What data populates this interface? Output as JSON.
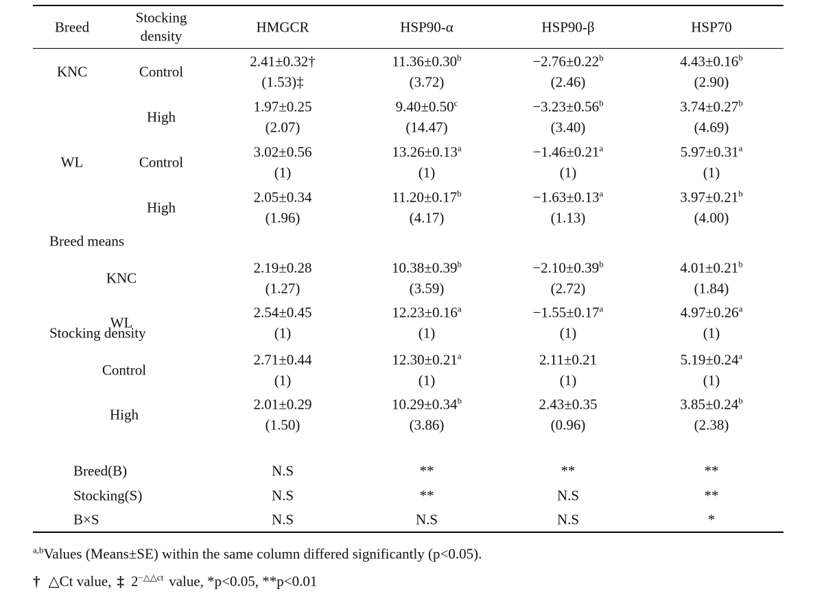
{
  "table": {
    "header": [
      "Breed",
      "Stocking density",
      "HMGCR",
      "HSP90-α",
      "HSP90-β",
      "HSP70"
    ],
    "rows": [
      {
        "breed": "KNC",
        "density": "Control",
        "cells": [
          {
            "value": "2.41±0.32†",
            "ratio": "(1.53)‡"
          },
          {
            "value": "11.36±0.30",
            "sup": "b",
            "ratio": "(3.72)"
          },
          {
            "value": "−2.76±0.22",
            "sup": "b",
            "ratio": "(2.46)"
          },
          {
            "value": "4.43±0.16",
            "sup": "b",
            "ratio": "(2.90)"
          }
        ]
      },
      {
        "density": "High",
        "cells": [
          {
            "value": "1.97±0.25",
            "ratio": "(2.07)"
          },
          {
            "value": "9.40±0.50",
            "sup": "c",
            "ratio": "(14.47)"
          },
          {
            "value": "−3.23±0.56",
            "sup": "b",
            "ratio": "(3.40)"
          },
          {
            "value": "3.74±0.27",
            "sup": "b",
            "ratio": "(4.69)"
          }
        ]
      },
      {
        "breed": "WL",
        "density": "Control",
        "cells": [
          {
            "value": "3.02±0.56",
            "ratio": "(1)"
          },
          {
            "value": "13.26±0.13",
            "sup": "a",
            "ratio": "(1)"
          },
          {
            "value": "−1.46±0.21",
            "sup": "a",
            "ratio": "(1)"
          },
          {
            "value": "5.97±0.31",
            "sup": "a",
            "ratio": "(1)"
          }
        ]
      },
      {
        "density": "High",
        "cells": [
          {
            "value": "2.05±0.34",
            "ratio": "(1.96)"
          },
          {
            "value": "11.20±0.17",
            "sup": "b",
            "ratio": "(4.17)"
          },
          {
            "value": "−1.63±0.13",
            "sup": "a",
            "ratio": "(1.13)"
          },
          {
            "value": "3.97±0.21",
            "sup": "b",
            "ratio": "(4.00)"
          }
        ]
      }
    ],
    "breed_means": {
      "label": "Breed means",
      "rows": [
        {
          "label": "KNC",
          "cells": [
            {
              "value": "2.19±0.28",
              "ratio": "(1.27)"
            },
            {
              "value": "10.38±0.39",
              "sup": "b",
              "ratio": "(3.59)"
            },
            {
              "value": "−2.10±0.39",
              "sup": "b",
              "ratio": "(2.72)"
            },
            {
              "value": "4.01±0.21",
              "sup": "b",
              "ratio": "(1.84)"
            }
          ]
        },
        {
          "label": "WL",
          "cells": [
            {
              "value": "2.54±0.45",
              "ratio": "(1)"
            },
            {
              "value": "12.23±0.16",
              "sup": "a",
              "ratio": "(1)"
            },
            {
              "value": "−1.55±0.17",
              "sup": "a",
              "ratio": "(1)"
            },
            {
              "value": "4.97±0.26",
              "sup": "a",
              "ratio": "(1)"
            }
          ]
        }
      ]
    },
    "density_means": {
      "label": "Stocking density",
      "rows": [
        {
          "label": "Control",
          "cells": [
            {
              "value": "2.71±0.44",
              "ratio": "(1)"
            },
            {
              "value": "12.30±0.21",
              "sup": "a",
              "ratio": "(1)"
            },
            {
              "value": "2.11±0.21",
              "ratio": "(1)"
            },
            {
              "value": "5.19±0.24",
              "sup": "a",
              "ratio": "(1)"
            }
          ]
        },
        {
          "label": "High",
          "cells": [
            {
              "value": "2.01±0.29",
              "ratio": "(1.50)"
            },
            {
              "value": "10.29±0.34",
              "sup": "b",
              "ratio": "(3.86)"
            },
            {
              "value": "2.43±0.35",
              "ratio": "(0.96)"
            },
            {
              "value": "3.85±0.24",
              "sup": "b",
              "ratio": "(2.38)"
            }
          ]
        }
      ]
    },
    "significance": [
      {
        "label": "Breed(B)",
        "cells": [
          "N.S",
          "**",
          "**",
          "**"
        ]
      },
      {
        "label": "Stocking(S)",
        "cells": [
          "N.S",
          "**",
          "N.S",
          "**"
        ]
      },
      {
        "label": "B×S",
        "cells": [
          "N.S",
          "N.S",
          "N.S",
          "*"
        ]
      }
    ]
  },
  "footnotes": {
    "first": {
      "sup": "a,b",
      "text": "Values (Means±SE) within the same column differed significantly (p<0.05)."
    },
    "second": {
      "dagger": "†",
      "dagger_text": "△Ct value,",
      "ddagger": "‡",
      "base": "2",
      "exponent": "−△△ct",
      "rest": "value, *p<0.05, **p<0.01"
    }
  }
}
